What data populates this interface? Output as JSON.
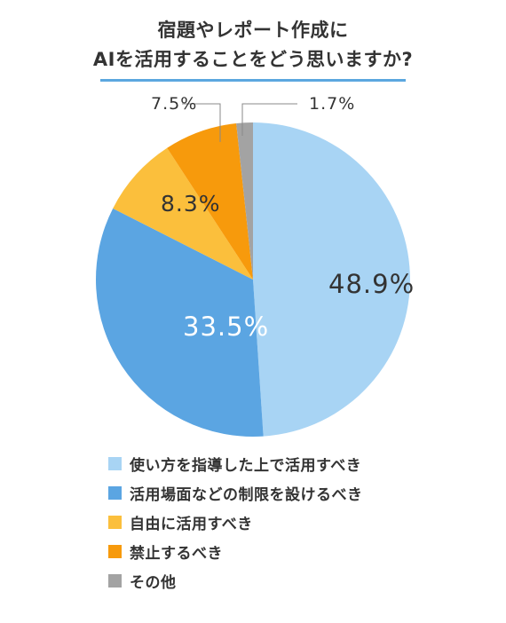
{
  "title": {
    "line1": "宿題やレポート作成に",
    "line2": "AIを活用することをどう思いますか?"
  },
  "chart_data": {
    "type": "pie",
    "title": "宿題やレポート作成に AIを活用することをどう思いますか?",
    "slices": [
      {
        "label": "使い方を指導した上で活用すべき",
        "value": 48.9,
        "display": "48.9%",
        "color": "#a8d4f4"
      },
      {
        "label": "活用場面などの制限を設けるべき",
        "value": 33.5,
        "display": "33.5%",
        "color": "#5ba5e2"
      },
      {
        "label": "自由に活用すべき",
        "value": 8.3,
        "display": "8.3%",
        "color": "#fbbf3c"
      },
      {
        "label": "禁止するべき",
        "value": 7.5,
        "display": "7.5%",
        "color": "#f79a0c"
      },
      {
        "label": "その他",
        "value": 1.7,
        "display": "1.7%",
        "color": "#a3a3a3"
      }
    ],
    "legend_position": "bottom-left"
  },
  "colors": {
    "accent_rule": "#5ba7df",
    "text": "#333333"
  }
}
